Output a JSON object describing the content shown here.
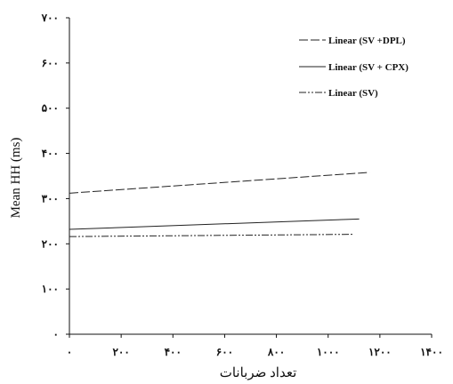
{
  "chart_data": {
    "type": "line",
    "xlabel": "تعداد ضربانات",
    "ylabel": "Mean HH (ms)",
    "xlim": [
      0,
      1400
    ],
    "ylim": [
      0,
      700
    ],
    "x_ticks": [
      {
        "value": 0,
        "label": "۰"
      },
      {
        "value": 200,
        "label": "۲۰۰"
      },
      {
        "value": 400,
        "label": "۴۰۰"
      },
      {
        "value": 600,
        "label": "۶۰۰"
      },
      {
        "value": 800,
        "label": "۸۰۰"
      },
      {
        "value": 1000,
        "label": "۱۰۰۰"
      },
      {
        "value": 1200,
        "label": "۱۲۰۰"
      },
      {
        "value": 1400,
        "label": "۱۴۰۰"
      }
    ],
    "y_ticks": [
      {
        "value": 0,
        "label": "۰"
      },
      {
        "value": 100,
        "label": "۱۰۰"
      },
      {
        "value": 200,
        "label": "۲۰۰"
      },
      {
        "value": 300,
        "label": "۳۰۰"
      },
      {
        "value": 400,
        "label": "۴۰۰"
      },
      {
        "value": 500,
        "label": "۵۰۰"
      },
      {
        "value": 600,
        "label": "۶۰۰"
      },
      {
        "value": 700,
        "label": "۷۰۰"
      }
    ],
    "legend_position": "top-right",
    "grid": false,
    "series": [
      {
        "name": "Linear (SV +DPL)",
        "style": "dashed",
        "color": "#222222",
        "x": [
          0,
          1160
        ],
        "y": [
          312,
          358
        ]
      },
      {
        "name": "Linear (SV + CPX)",
        "style": "solid",
        "color": "#222222",
        "x": [
          0,
          1120
        ],
        "y": [
          232,
          255
        ]
      },
      {
        "name": "Linear (SV)",
        "style": "dash-dot-dot",
        "color": "#222222",
        "x": [
          0,
          1100
        ],
        "y": [
          216,
          221
        ]
      }
    ]
  }
}
